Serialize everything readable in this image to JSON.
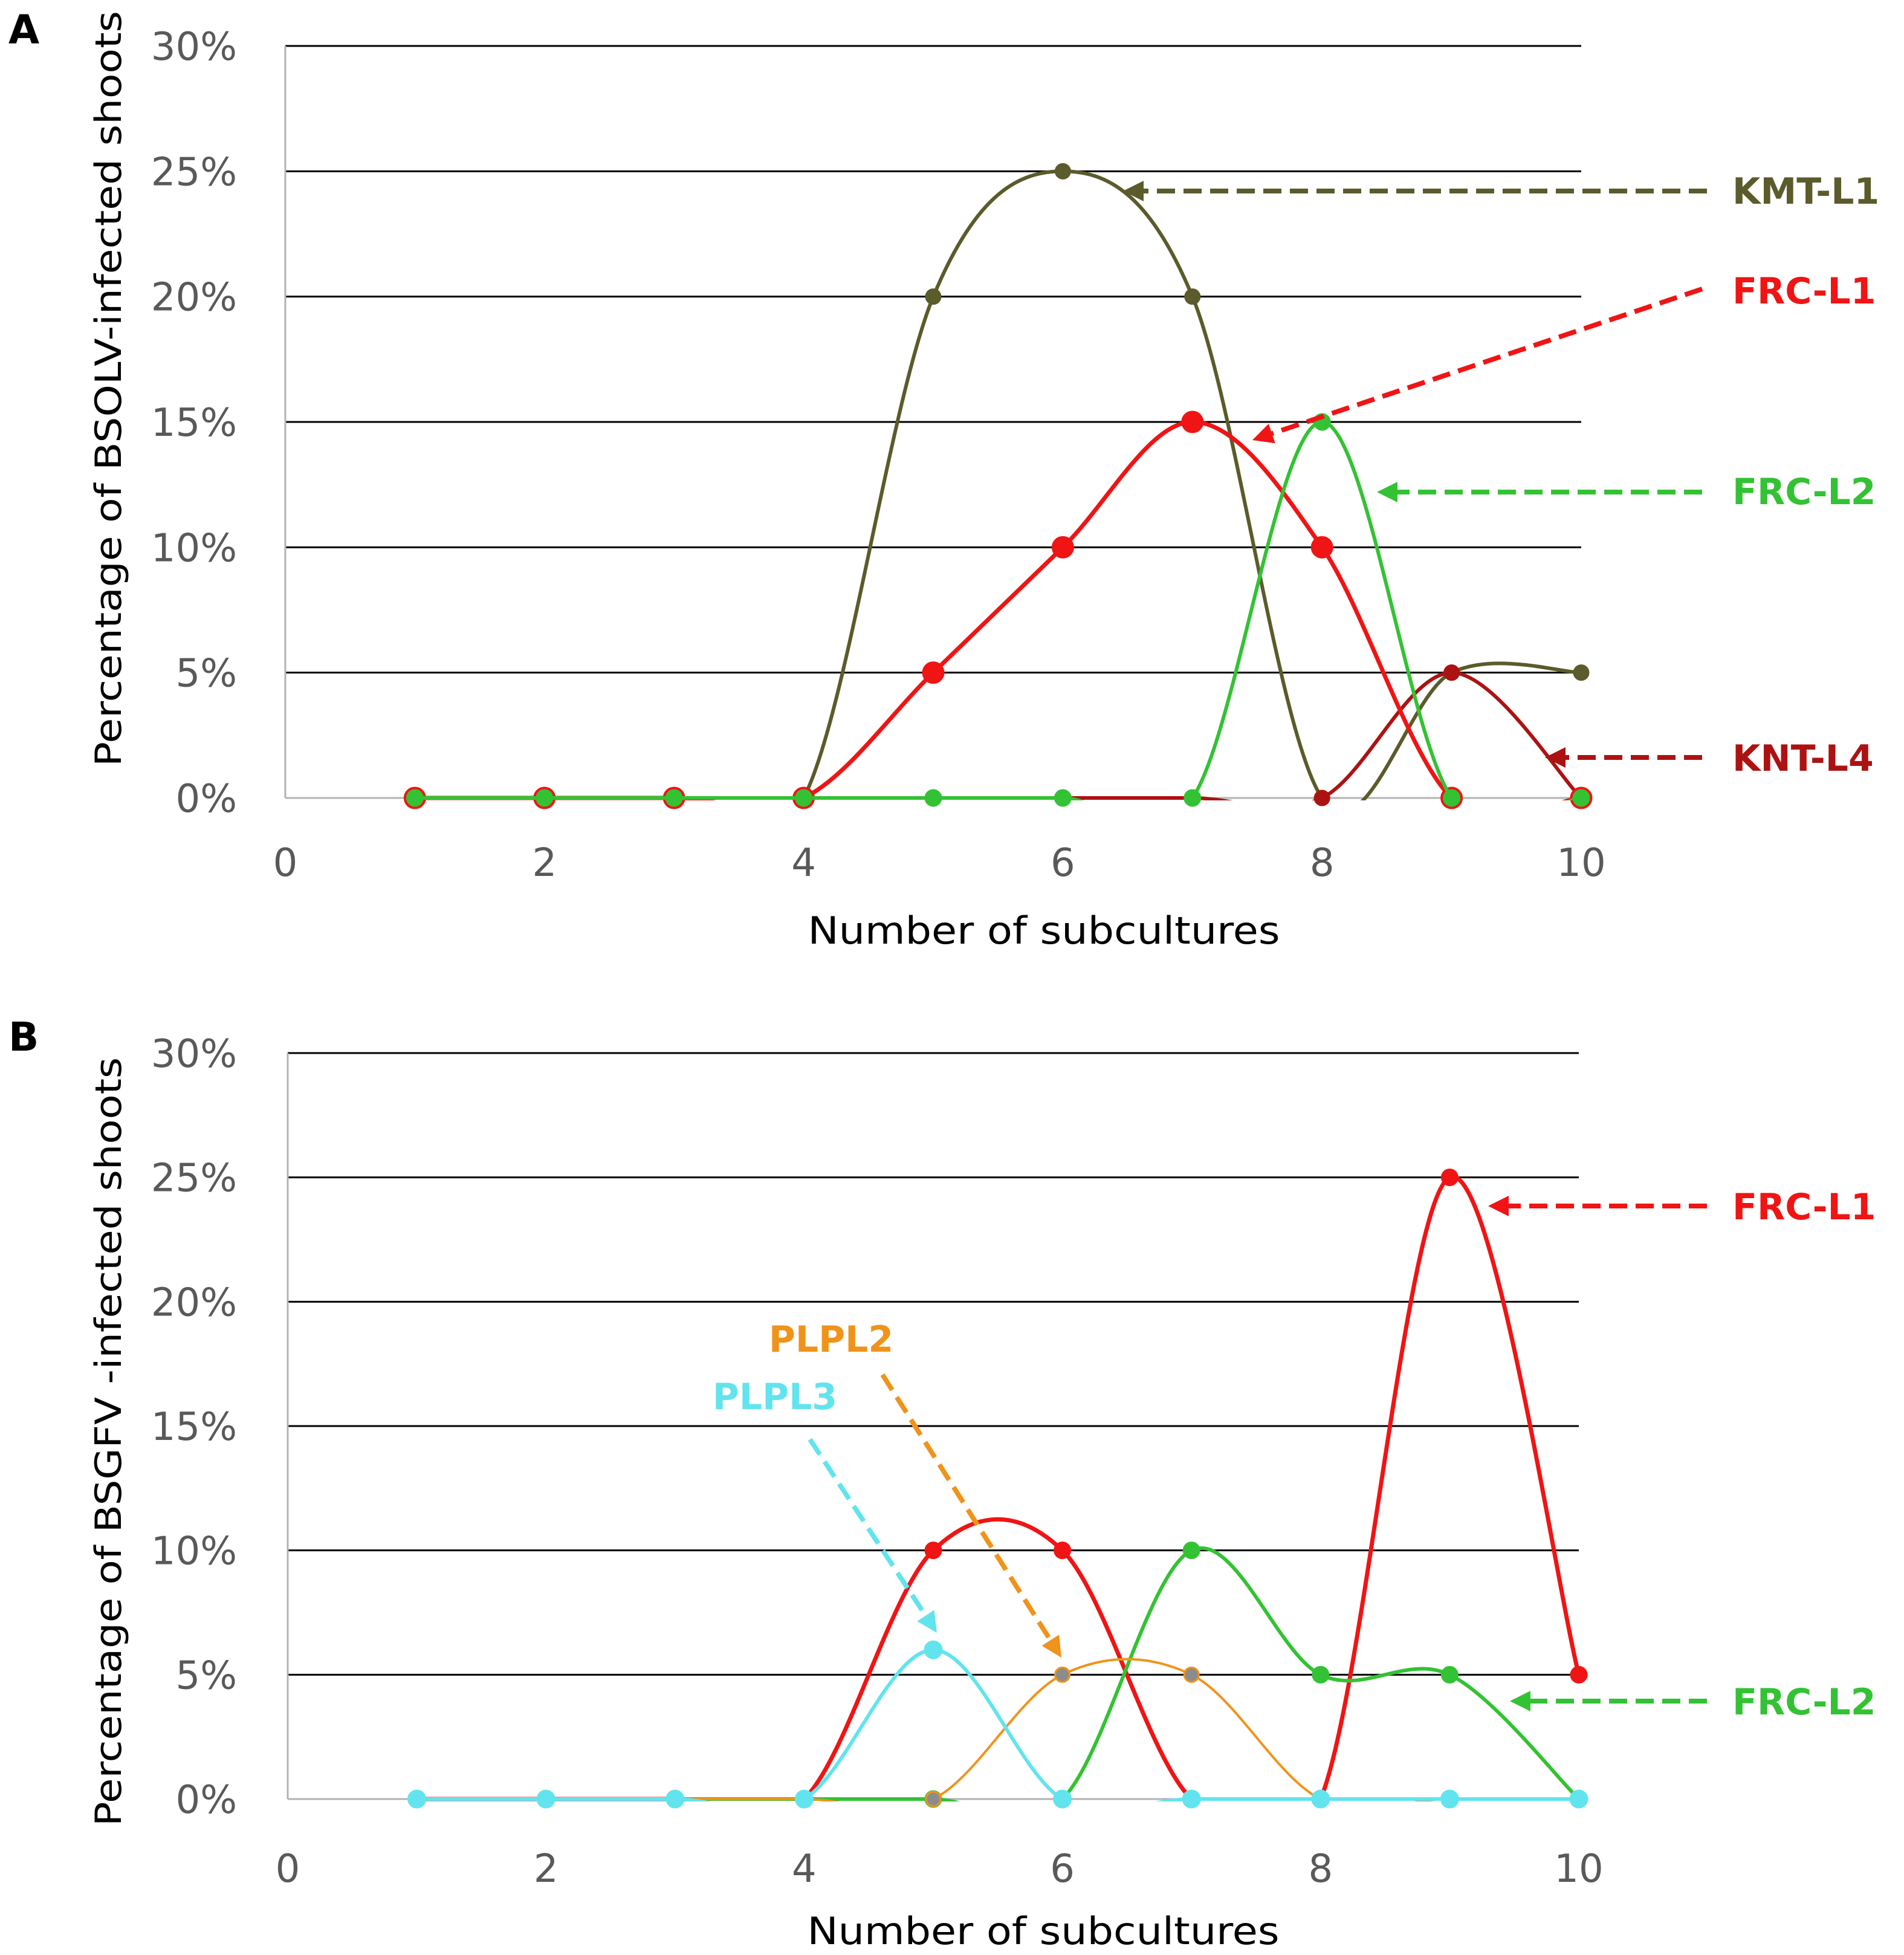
{
  "chart_data": [
    {
      "panel": "A",
      "type": "line",
      "xlabel": "Number of subcultures",
      "ylabel": "Percentage of BSOLV-infected shoots",
      "xlim": [
        0,
        10
      ],
      "ylim": [
        0,
        30
      ],
      "xticks": [
        0,
        2,
        4,
        6,
        8,
        10
      ],
      "xtick_labels": [
        "0",
        "2",
        "4",
        "6",
        "8",
        "10"
      ],
      "yticks": [
        0,
        5,
        10,
        15,
        20,
        25,
        30
      ],
      "ytick_labels": [
        "0%",
        "5%",
        "10%",
        "15%",
        "20%",
        "25%",
        "30%"
      ],
      "grid": true,
      "x": [
        1,
        2,
        3,
        4,
        5,
        6,
        7,
        8,
        9,
        10
      ],
      "series": [
        {
          "name": "KMT-L1",
          "color": "#5b5b2b",
          "marker_color": "#5b5b2b",
          "values": [
            0,
            0,
            0,
            0,
            20,
            25,
            20,
            0,
            5,
            5
          ]
        },
        {
          "name": "KNT-L4",
          "color": "#ad1212",
          "marker_color": "#ad1212",
          "values": [
            0,
            0,
            0,
            0,
            0,
            0,
            0,
            0,
            5,
            0
          ]
        },
        {
          "name": "FRC-L1",
          "color": "#f01414",
          "marker_color": "#f01414",
          "values": [
            0,
            0,
            0,
            0,
            5,
            10,
            15,
            10,
            0,
            0
          ]
        },
        {
          "name": "FRC-L2",
          "color": "#33c233",
          "marker_color": "#33c233",
          "values": [
            0,
            0,
            0,
            0,
            0,
            0,
            0,
            15,
            0,
            0
          ]
        }
      ]
    },
    {
      "panel": "B",
      "type": "line",
      "xlabel": "Number of subcultures",
      "ylabel": "Percentage of BSGFV -infected shoots",
      "xlim": [
        0,
        10
      ],
      "ylim": [
        0,
        30
      ],
      "xticks": [
        0,
        2,
        4,
        6,
        8,
        10
      ],
      "xtick_labels": [
        "0",
        "2",
        "4",
        "6",
        "8",
        "10"
      ],
      "yticks": [
        0,
        5,
        10,
        15,
        20,
        25,
        30
      ],
      "ytick_labels": [
        "0%",
        "5%",
        "10%",
        "15%",
        "20%",
        "25%",
        "30%"
      ],
      "grid": true,
      "x": [
        1,
        2,
        3,
        4,
        5,
        6,
        7,
        8,
        9,
        10
      ],
      "series": [
        {
          "name": "FRC-L1",
          "color": "#f01414",
          "marker_color": "#f01414",
          "values": [
            0,
            0,
            0,
            0,
            10,
            10,
            0,
            0,
            25,
            5
          ]
        },
        {
          "name": "FRC-L2",
          "color": "#33c233",
          "marker_color": "#33c233",
          "values": [
            0,
            0,
            0,
            0,
            0,
            0,
            10,
            5,
            5,
            0
          ]
        },
        {
          "name": "PLPL2",
          "color": "#f0931a",
          "marker_color": "#8c8c8c",
          "values": [
            0,
            0,
            0,
            0,
            0,
            5,
            5,
            0,
            0,
            0
          ]
        },
        {
          "name": "PLPL3",
          "color": "#62e4ee",
          "marker_color": "#62e4ee",
          "values": [
            0,
            0,
            0,
            0,
            6,
            0,
            0,
            0,
            0,
            0
          ]
        }
      ]
    }
  ]
}
